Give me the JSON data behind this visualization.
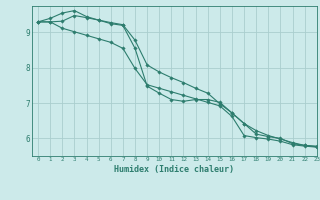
{
  "xlabel": "Humidex (Indice chaleur)",
  "ylabel": "",
  "background_color": "#cceaea",
  "line_color": "#2d7d6e",
  "grid_color": "#aacece",
  "xlim": [
    -0.5,
    23
  ],
  "ylim": [
    5.5,
    9.75
  ],
  "yticks": [
    6,
    7,
    8,
    9
  ],
  "xticks": [
    0,
    1,
    2,
    3,
    4,
    5,
    6,
    7,
    8,
    9,
    10,
    11,
    12,
    13,
    14,
    15,
    16,
    17,
    18,
    19,
    20,
    21,
    22,
    23
  ],
  "series": [
    {
      "x": [
        0,
        1,
        2,
        3,
        4,
        5,
        6,
        7,
        8,
        9,
        10,
        11,
        12,
        13,
        14,
        15,
        16,
        17,
        18,
        19,
        20,
        21,
        22,
        23
      ],
      "y": [
        9.3,
        9.4,
        9.55,
        9.62,
        9.45,
        9.35,
        9.25,
        9.2,
        8.55,
        7.48,
        7.28,
        7.1,
        7.05,
        7.1,
        7.1,
        7.02,
        6.72,
        6.42,
        6.12,
        6.05,
        6.0,
        5.85,
        5.8,
        5.78
      ]
    },
    {
      "x": [
        0,
        1,
        2,
        3,
        4,
        5,
        6,
        7,
        8,
        9,
        10,
        11,
        12,
        13,
        14,
        15,
        16,
        17,
        18,
        19,
        20,
        21,
        22,
        23
      ],
      "y": [
        9.3,
        9.3,
        9.32,
        9.48,
        9.42,
        9.35,
        9.28,
        9.22,
        8.78,
        8.08,
        7.88,
        7.72,
        7.58,
        7.42,
        7.28,
        6.98,
        6.72,
        6.42,
        6.22,
        6.08,
        5.98,
        5.88,
        5.8,
        5.76
      ]
    },
    {
      "x": [
        0,
        1,
        2,
        3,
        4,
        5,
        6,
        7,
        8,
        9,
        10,
        11,
        12,
        13,
        14,
        15,
        16,
        17,
        18,
        19,
        20,
        21,
        22,
        23
      ],
      "y": [
        9.3,
        9.3,
        9.12,
        9.02,
        8.92,
        8.82,
        8.72,
        8.55,
        7.98,
        7.52,
        7.42,
        7.32,
        7.22,
        7.12,
        7.02,
        6.92,
        6.62,
        6.08,
        6.02,
        5.98,
        5.92,
        5.82,
        5.78,
        5.75
      ]
    }
  ]
}
